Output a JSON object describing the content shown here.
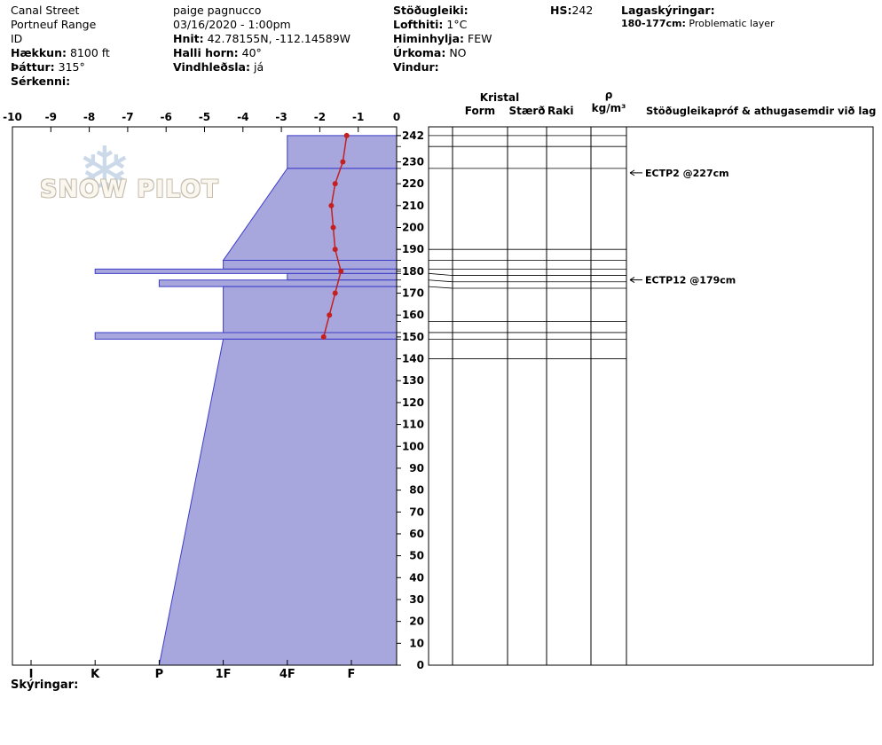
{
  "header": {
    "site": "Canal Street",
    "range": "Portneuf Range",
    "state": "ID",
    "elevation_label": "Hækkun:",
    "elevation": "8100 ft",
    "aspect_label": "Þáttur:",
    "aspect": "315°",
    "features_label": "Sérkenni:",
    "observer": "paige pagnucco",
    "datetime": "03/16/2020 - 1:00pm",
    "coords_label": "Hnit:",
    "coords": "42.78155N, -112.14589W",
    "slope_label": "Halli horn:",
    "slope": "40°",
    "windload_label": "Vindhleðsla:",
    "windload": "já",
    "stability_label": "Stöðugleiki:",
    "airtemp_label": "Lofthiti:",
    "airtemp": "1°C",
    "sky_label": "Himinhylja:",
    "sky": "FEW",
    "precip_label": "Úrkoma:",
    "precip": "NO",
    "wind_label": "Vindur:",
    "hs_label": "HS:",
    "hs": "242",
    "layer_notes_label": "Lagaskýringar:",
    "layer_note_depth": "180-177cm:",
    "layer_note_text": "Problematic layer"
  },
  "watermark": {
    "text": "SNOW PILOT",
    "snowflake": "❄"
  },
  "panel": {
    "kristal": "Kristal",
    "form": "Form",
    "staerd": "Stærð",
    "raki": "Raki",
    "rho": "ρ",
    "rho_units": "kg/m³",
    "tests_header": "Stöðugleikapróf & athugasemdir við lag"
  },
  "footer": {
    "legend_label": "Skýringar:"
  },
  "chart_data": {
    "type": "snow-profile",
    "depth_axis": {
      "unit": "cm",
      "max_cm": 242,
      "plot_max_cm": 246,
      "tick_labels": [
        242,
        230,
        220,
        210,
        200,
        190,
        180,
        170,
        160,
        150,
        140,
        130,
        120,
        110,
        100,
        90,
        80,
        70,
        60,
        50,
        40,
        30,
        20,
        10,
        0
      ]
    },
    "temp_axis": {
      "unit": "°C",
      "min": -10,
      "max": 0,
      "ticks": [
        -10,
        -9,
        -8,
        -7,
        -6,
        -5,
        -4,
        -3,
        -2,
        -1,
        0
      ]
    },
    "hardness_axis": {
      "labels": [
        "I",
        "K",
        "P",
        "1F",
        "4F",
        "F"
      ]
    },
    "layers": [
      {
        "top_cm": 242,
        "bottom_cm": 227,
        "hardness_top": "4F",
        "hardness_bottom": "4F"
      },
      {
        "top_cm": 227,
        "bottom_cm": 185,
        "hardness_top": "4F",
        "hardness_bottom": "1F"
      },
      {
        "top_cm": 185,
        "bottom_cm": 181,
        "hardness_top": "1F",
        "hardness_bottom": "1F"
      },
      {
        "top_cm": 181,
        "bottom_cm": 179,
        "hardness_top": "K",
        "hardness_bottom": "K"
      },
      {
        "top_cm": 179,
        "bottom_cm": 176,
        "hardness_top": "4F",
        "hardness_bottom": "4F"
      },
      {
        "top_cm": 176,
        "bottom_cm": 173,
        "hardness_top": "P",
        "hardness_bottom": "P"
      },
      {
        "top_cm": 173,
        "bottom_cm": 152,
        "hardness_top": "1F",
        "hardness_bottom": "1F"
      },
      {
        "top_cm": 152,
        "bottom_cm": 149,
        "hardness_top": "K",
        "hardness_bottom": "K"
      },
      {
        "top_cm": 149,
        "bottom_cm": 0,
        "hardness_top": "1F",
        "hardness_bottom": "P"
      }
    ],
    "temperature_profile": [
      {
        "depth_cm": 242,
        "temp_c": -1.3
      },
      {
        "depth_cm": 230,
        "temp_c": -1.4
      },
      {
        "depth_cm": 220,
        "temp_c": -1.6
      },
      {
        "depth_cm": 210,
        "temp_c": -1.7
      },
      {
        "depth_cm": 200,
        "temp_c": -1.65
      },
      {
        "depth_cm": 190,
        "temp_c": -1.6
      },
      {
        "depth_cm": 180,
        "temp_c": -1.45
      },
      {
        "depth_cm": 170,
        "temp_c": -1.6
      },
      {
        "depth_cm": 160,
        "temp_c": -1.75
      },
      {
        "depth_cm": 150,
        "temp_c": -1.9
      }
    ],
    "grid_boundaries_cm": [
      242,
      237,
      227,
      190,
      185,
      181,
      179,
      176,
      173,
      157,
      152,
      149,
      140
    ],
    "tests": [
      {
        "label": "ECTP2 @227cm",
        "depth_cm": 227
      },
      {
        "label": "ECTP12 @179cm",
        "depth_cm": 179
      }
    ],
    "colors": {
      "layer_fill": "#9898d8",
      "layer_stroke": "#3c3cc8",
      "temp_line": "#c42020",
      "grid": "#000000"
    }
  }
}
